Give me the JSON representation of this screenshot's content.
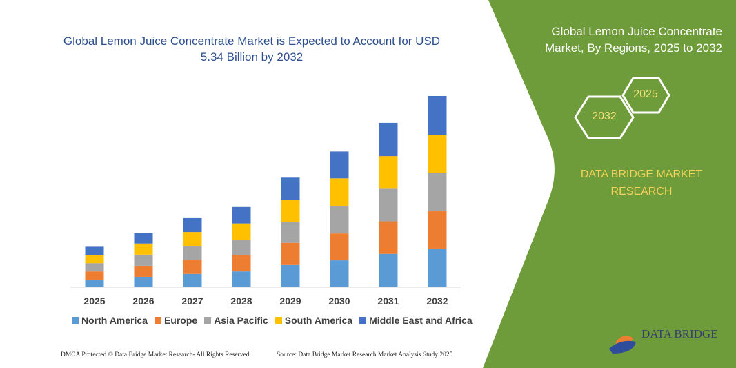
{
  "title": "Global Lemon Juice Concentrate Market is Expected to Account for USD 5.34 Billion by 2032",
  "side_panel": {
    "title": "Global Lemon Juice Concentrate Market, By Regions, 2025 to 2032",
    "hex_1": "2032",
    "hex_2": "2025",
    "brand": "DATA BRIDGE MARKET RESEARCH",
    "logo_text": "DATA BRIDGE",
    "color": "#6f9c3a"
  },
  "footer": {
    "left": "DMCA Protected © Data Bridge Market Research-  All Rights Reserved.",
    "right": "Source: Data Bridge Market Research  Market Analysis Study 2025"
  },
  "chart_data": {
    "type": "bar",
    "stacked": true,
    "title": "Global Lemon Juice Concentrate Market is Expected to Account for USD 5.34 Billion by 2032",
    "categories": [
      "2025",
      "2026",
      "2027",
      "2028",
      "2029",
      "2030",
      "2031",
      "2032"
    ],
    "series": [
      {
        "name": "North America",
        "color": "#5b9bd5",
        "values": [
          0.21,
          0.29,
          0.37,
          0.44,
          0.62,
          0.75,
          0.93,
          1.08
        ]
      },
      {
        "name": "Europe",
        "color": "#ed7d31",
        "values": [
          0.23,
          0.31,
          0.39,
          0.46,
          0.62,
          0.75,
          0.91,
          1.04
        ]
      },
      {
        "name": "Asia Pacific",
        "color": "#a5a5a5",
        "values": [
          0.23,
          0.31,
          0.39,
          0.42,
          0.58,
          0.77,
          0.91,
          1.08
        ]
      },
      {
        "name": "South America",
        "color": "#ffc000",
        "values": [
          0.23,
          0.31,
          0.39,
          0.46,
          0.62,
          0.77,
          0.91,
          1.06
        ]
      },
      {
        "name": "Middle East and Africa",
        "color": "#4472c4",
        "values": [
          0.23,
          0.29,
          0.39,
          0.46,
          0.62,
          0.75,
          0.93,
          1.08
        ]
      }
    ],
    "ylim": [
      0,
      5.34
    ],
    "grid": false,
    "legend_position": "bottom"
  }
}
